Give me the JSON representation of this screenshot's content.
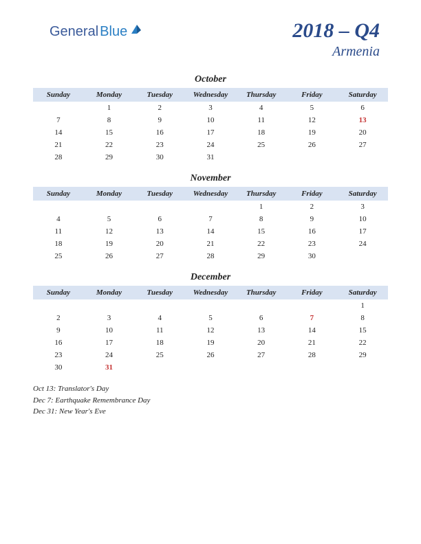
{
  "logo": {
    "part1": "General",
    "part2": "Blue"
  },
  "header": {
    "quarter": "2018 – Q4",
    "country": "Armenia"
  },
  "dayHeaders": [
    "Sunday",
    "Monday",
    "Tuesday",
    "Wednesday",
    "Thursday",
    "Friday",
    "Saturday"
  ],
  "months": [
    {
      "name": "October",
      "weeks": [
        [
          "",
          "1",
          "2",
          "3",
          "4",
          "5",
          "6"
        ],
        [
          "7",
          "8",
          "9",
          "10",
          "11",
          "12",
          "13"
        ],
        [
          "14",
          "15",
          "16",
          "17",
          "18",
          "19",
          "20"
        ],
        [
          "21",
          "22",
          "23",
          "24",
          "25",
          "26",
          "27"
        ],
        [
          "28",
          "29",
          "30",
          "31",
          "",
          "",
          ""
        ]
      ],
      "holidays": [
        "13"
      ]
    },
    {
      "name": "November",
      "weeks": [
        [
          "",
          "",
          "",
          "",
          "1",
          "2",
          "3"
        ],
        [
          "4",
          "5",
          "6",
          "7",
          "8",
          "9",
          "10"
        ],
        [
          "11",
          "12",
          "13",
          "14",
          "15",
          "16",
          "17"
        ],
        [
          "18",
          "19",
          "20",
          "21",
          "22",
          "23",
          "24"
        ],
        [
          "25",
          "26",
          "27",
          "28",
          "29",
          "30",
          ""
        ]
      ],
      "holidays": []
    },
    {
      "name": "December",
      "weeks": [
        [
          "",
          "",
          "",
          "",
          "",
          "",
          "1"
        ],
        [
          "2",
          "3",
          "4",
          "5",
          "6",
          "7",
          "8"
        ],
        [
          "9",
          "10",
          "11",
          "12",
          "13",
          "14",
          "15"
        ],
        [
          "16",
          "17",
          "18",
          "19",
          "20",
          "21",
          "22"
        ],
        [
          "23",
          "24",
          "25",
          "26",
          "27",
          "28",
          "29"
        ],
        [
          "30",
          "31",
          "",
          "",
          "",
          "",
          ""
        ]
      ],
      "holidays": [
        "7",
        "31"
      ]
    }
  ],
  "holidayList": [
    "Oct 13: Translator's Day",
    "Dec 7: Earthquake Remembrance Day",
    "Dec 31: New Year's Eve"
  ],
  "colors": {
    "header_bg": "#d9e3f2",
    "title_color": "#2a4a8a",
    "holiday_color": "#c43030",
    "text_color": "#222222",
    "background": "#ffffff"
  },
  "typography": {
    "quarter_fontsize": 30,
    "country_fontsize": 20,
    "month_fontsize": 14,
    "dayheader_fontsize": 11,
    "cell_fontsize": 11,
    "holiday_list_fontsize": 11
  }
}
